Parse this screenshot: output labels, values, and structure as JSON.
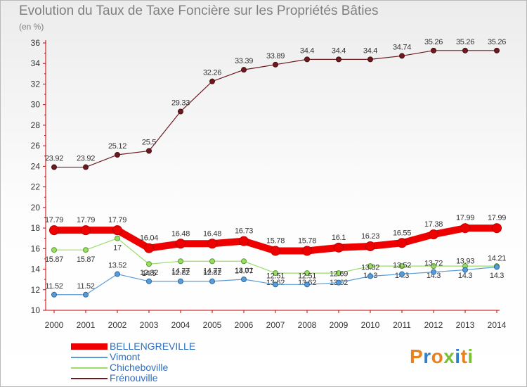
{
  "chart_data": {
    "type": "line",
    "title": "Evolution du Taux de Taxe Foncière sur les Propriétés Bâties",
    "unit_label": "(en %)",
    "xlabel": "",
    "ylabel": "",
    "x": [
      "2000",
      "2001",
      "2002",
      "2003",
      "2004",
      "2005",
      "2006",
      "2007",
      "2008",
      "2009",
      "2010",
      "2011",
      "2012",
      "2013",
      "2014"
    ],
    "ylim": [
      10,
      36
    ],
    "yticks": [
      10,
      12,
      14,
      16,
      18,
      20,
      22,
      24,
      26,
      28,
      30,
      32,
      34,
      36
    ],
    "grid": false,
    "legend_position": "bottom-left",
    "series": [
      {
        "name": "Frénouville",
        "color": "#6b1a1f",
        "values": [
          23.92,
          23.92,
          25.12,
          25.5,
          29.33,
          32.26,
          33.39,
          33.89,
          34.4,
          34.4,
          34.4,
          34.74,
          35.26,
          35.26,
          35.26
        ],
        "labels": [
          "23.92",
          "23.92",
          "25.12",
          "25.5",
          "29.33",
          "32.26",
          "33.39",
          "33.89",
          "34.4",
          "34.4",
          "34.4",
          "34.74",
          "35.26",
          "35.26",
          "35.26"
        ]
      },
      {
        "name": "Chicheboville",
        "color": "#99dd66",
        "values": [
          15.87,
          15.87,
          17.0,
          14.5,
          14.77,
          14.77,
          14.77,
          13.62,
          13.62,
          13.62,
          14.3,
          14.3,
          14.3,
          14.3,
          14.3
        ],
        "labels": [
          "15.87",
          "15.87",
          "17",
          "14.5",
          "14.77",
          "14.77",
          "14.77",
          "13.62",
          "13.62",
          "13.62",
          "14.3",
          "14.3",
          "14.3",
          "14.3",
          "14.3"
        ]
      },
      {
        "name": "Vimont",
        "color": "#5b9bd5",
        "values": [
          11.52,
          11.52,
          13.52,
          12.82,
          12.82,
          12.82,
          13.01,
          12.51,
          12.51,
          12.69,
          13.32,
          13.52,
          13.72,
          13.93,
          14.21
        ],
        "labels": [
          "11.52",
          "11.52",
          "13.52",
          "12.82",
          "12.82",
          "12.82",
          "13.01",
          "12.51",
          "12.51",
          "12.69",
          "13.32",
          "13.52",
          "13.72",
          "13.93",
          "14.21"
        ]
      },
      {
        "name": "BELLENGREVILLE",
        "color": "#ee0000",
        "values": [
          17.79,
          17.79,
          17.79,
          16.04,
          16.48,
          16.48,
          16.73,
          15.78,
          15.78,
          16.1,
          16.23,
          16.55,
          17.38,
          17.99,
          17.99
        ],
        "labels": [
          "17.79",
          "17.79",
          "17.79",
          "16.04",
          "16.48",
          "16.48",
          "16.73",
          "15.78",
          "15.78",
          "16.1",
          "16.23",
          "16.55",
          "17.38",
          "17.99",
          "17.99"
        ]
      }
    ]
  },
  "legend": [
    {
      "name": "BELLENGREVILLE",
      "color": "#ee0000"
    },
    {
      "name": "Vimont",
      "color": "#5b9bd5"
    },
    {
      "name": "Chicheboville",
      "color": "#99dd66"
    },
    {
      "name": "Frénouville",
      "color": "#6b1a1f"
    }
  ],
  "brand": {
    "letters": [
      "P",
      "r",
      "o",
      "x",
      "i",
      "t",
      "i"
    ]
  }
}
